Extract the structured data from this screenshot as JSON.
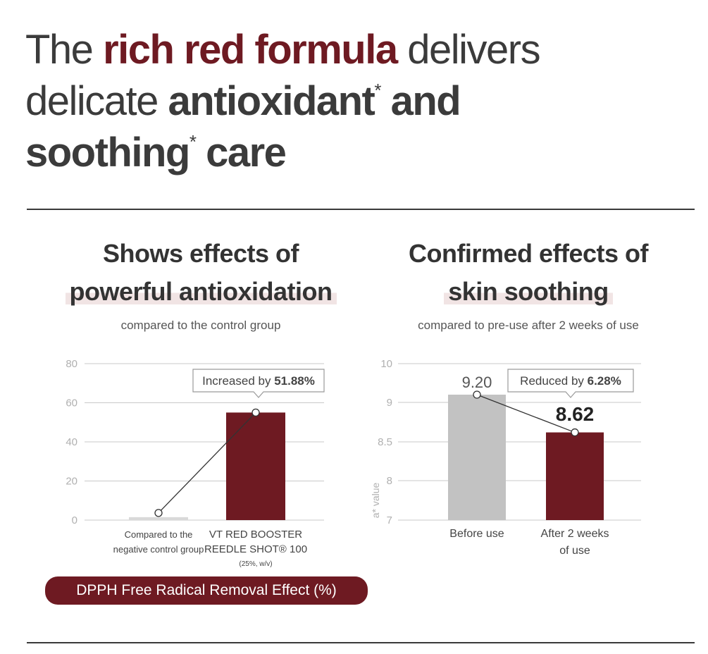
{
  "headline": {
    "line1_part1": "The ",
    "line1_red": "rich red formula",
    "line1_part2": " delivers",
    "line2_part1": "delicate ",
    "line2_bold": "antioxidant",
    "line2_sup": "*",
    "line2_bold2": " and",
    "line3_bold": "soothing",
    "line3_sup": "*",
    "line3_part2": " care"
  },
  "left_panel": {
    "title_line1": "Shows effects of",
    "title_line2": "powerful antioxidation",
    "subtitle": "compared to the control group",
    "callout_prefix": "Increased by ",
    "callout_value": "51.88%",
    "tick_labels": [
      "80",
      "60",
      "40",
      "20",
      "0"
    ],
    "category_labels": [
      [
        "Compared to the",
        "negative control group"
      ],
      [
        "VT RED BOOSTER",
        "REEDLE SHOT® 100",
        "(25%, w/v)"
      ]
    ],
    "badge": "DPPH Free Radical Removal Effect (%)"
  },
  "right_panel": {
    "title_line1": "Confirmed effects of",
    "title_line2": "skin soothing",
    "subtitle": "compared to pre-use after 2 weeks of use",
    "callout_prefix": "Reduced by ",
    "callout_value": "6.28%",
    "value_label_before": "9.20",
    "value_label_after": "8.62",
    "tick_labels": [
      "10",
      "9",
      "8.5",
      "8",
      "7"
    ],
    "ylabel": "a* value",
    "category_labels": [
      [
        "Before use"
      ],
      [
        "After 2 weeks",
        "of use"
      ]
    ]
  },
  "colors": {
    "accent_red": "#6e1a22",
    "bar_gray": "#c2c2c2",
    "control_bar": "#d9d9d9",
    "grid": "#c9c9c9"
  },
  "chart_data": [
    {
      "type": "bar",
      "categories": [
        "Compared to the negative control group",
        "VT RED BOOSTER REEDLE SHOT® 100 (25%, w/v)"
      ],
      "values": [
        1.5,
        55
      ],
      "yticks": [
        0,
        20,
        40,
        60,
        80
      ],
      "ylim": [
        0,
        80
      ],
      "grid": true,
      "annotation": "Increased by 51.88%",
      "title": "DPPH Free Radical Removal Effect (%)"
    },
    {
      "type": "bar",
      "categories": [
        "Before use",
        "After 2 weeks of use"
      ],
      "values": [
        9.2,
        8.62
      ],
      "yticks": [
        7,
        8,
        8.5,
        9,
        10
      ],
      "ylabel": "a* value",
      "grid": true,
      "annotation": "Reduced by 6.28%"
    }
  ]
}
